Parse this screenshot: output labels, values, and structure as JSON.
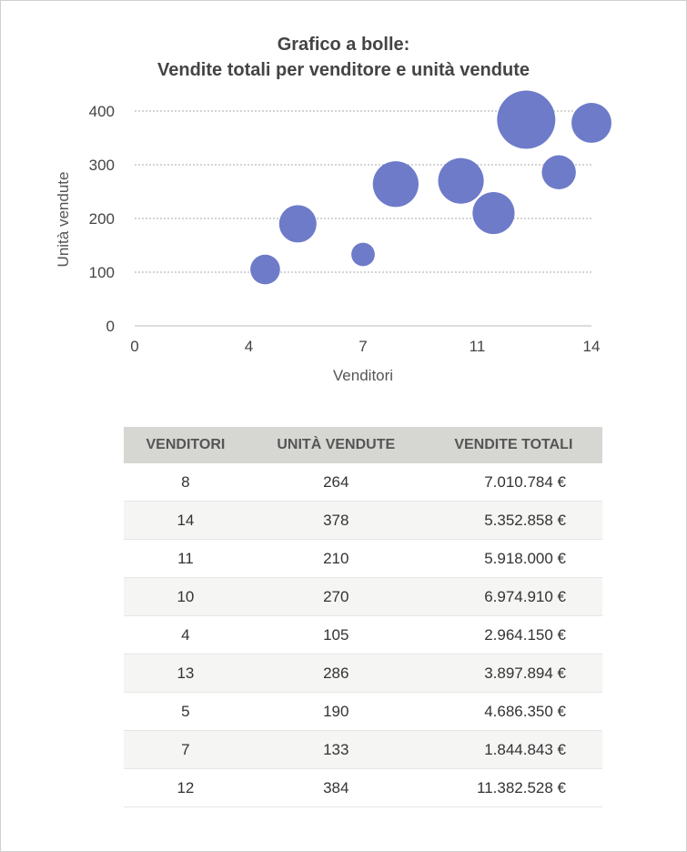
{
  "chart_data": {
    "type": "bubble",
    "title": [
      "Grafico a bolle:",
      "Vendite totali per venditore e unità vendute"
    ],
    "xlabel": "Venditori",
    "ylabel": "Unità vendute",
    "xlim": [
      0,
      14
    ],
    "ylim": [
      0,
      400
    ],
    "x_tick_labels": [
      "0",
      "4",
      "7",
      "11",
      "14"
    ],
    "y_ticks": [
      0,
      100,
      200,
      300,
      400
    ],
    "grid": "horizontal dotted",
    "bubble_color": "#6e7bc9",
    "points": [
      {
        "x": 8,
        "y": 264,
        "size": 7010784
      },
      {
        "x": 14,
        "y": 378,
        "size": 5352858
      },
      {
        "x": 11,
        "y": 210,
        "size": 5918000
      },
      {
        "x": 10,
        "y": 270,
        "size": 6974910
      },
      {
        "x": 4,
        "y": 105,
        "size": 2964150
      },
      {
        "x": 13,
        "y": 286,
        "size": 3897894
      },
      {
        "x": 5,
        "y": 190,
        "size": 4686350
      },
      {
        "x": 7,
        "y": 133,
        "size": 1844843
      },
      {
        "x": 12,
        "y": 384,
        "size": 11382528
      }
    ]
  },
  "table": {
    "headers": [
      "VENDITORI",
      "UNITÀ VENDUTE",
      "VENDITE TOTALI"
    ],
    "rows": [
      [
        "8",
        "264",
        "7.010.784 €"
      ],
      [
        "14",
        "378",
        "5.352.858 €"
      ],
      [
        "11",
        "210",
        "5.918.000 €"
      ],
      [
        "10",
        "270",
        "6.974.910 €"
      ],
      [
        "4",
        "105",
        "2.964.150 €"
      ],
      [
        "13",
        "286",
        "3.897.894 €"
      ],
      [
        "5",
        "190",
        "4.686.350 €"
      ],
      [
        "7",
        "133",
        "1.844.843 €"
      ],
      [
        "12",
        "384",
        "11.382.528 €"
      ]
    ]
  }
}
